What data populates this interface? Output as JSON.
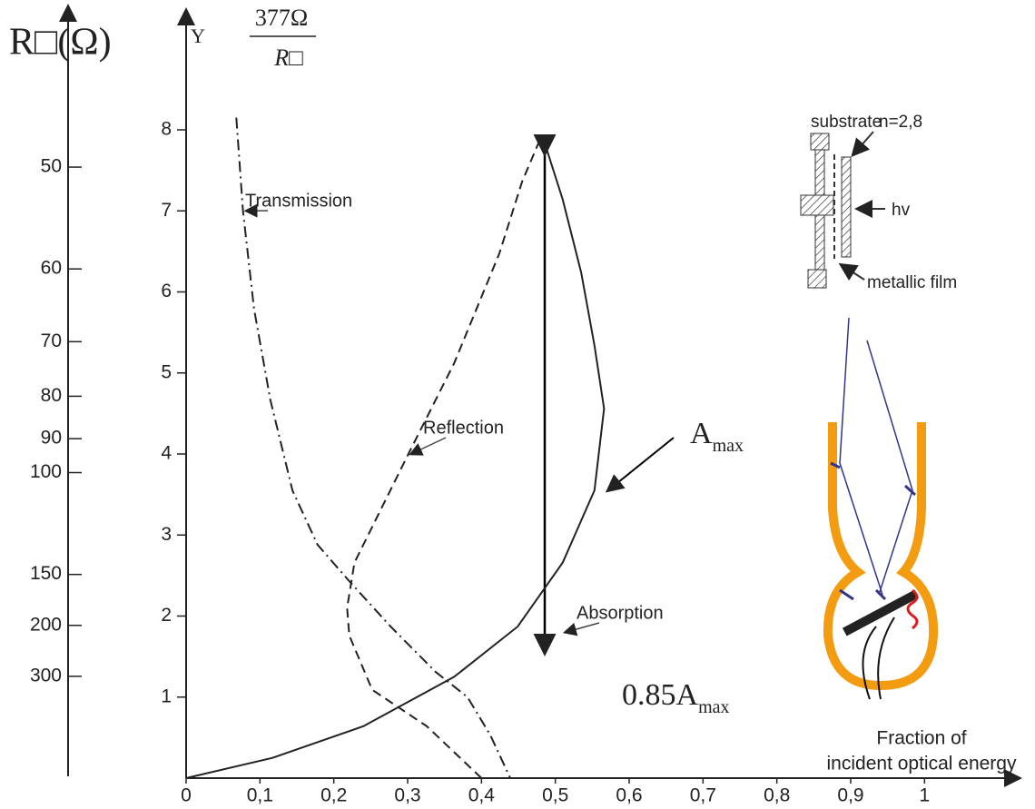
{
  "chart_data": {
    "type": "line",
    "y_label": "Y",
    "y_label_numerator": "377Ω",
    "y_label_denominator": "R□",
    "y2_label": "R□(Ω)",
    "x_label_lines": [
      "Fraction of",
      "incident optical energy"
    ],
    "xlim": [
      0,
      1.125
    ],
    "xticks": [
      0,
      {
        "value": 0.1,
        "label": "0,1"
      },
      {
        "value": 0.2,
        "label": "0,2"
      },
      {
        "value": 0.3,
        "label": "0,3"
      },
      {
        "value": 0.4,
        "label": "0,4"
      },
      {
        "value": 0.5,
        "label": "0,5"
      },
      {
        "value": 0.6,
        "label": "0,6"
      },
      {
        "value": 0.7,
        "label": "0,7"
      },
      {
        "value": 0.8,
        "label": "0,8"
      },
      {
        "value": 0.9,
        "label": "0,9"
      },
      1
    ],
    "ylim": [
      0,
      9.49
    ],
    "yticks": [
      1,
      2,
      3,
      4,
      5,
      6,
      7,
      8
    ],
    "y2scale": "reciprocal",
    "y2scale_numerator": 377,
    "y2ticks": [
      50,
      60,
      70,
      80,
      90,
      100,
      150,
      200,
      300
    ],
    "series": [
      {
        "name": "Transmission",
        "color": "#222222",
        "dash": "dashdot",
        "x": [
          0.068,
          0.077,
          0.092,
          0.114,
          0.144,
          0.178,
          0.221,
          0.277,
          0.338,
          0.381,
          0.412,
          0.439
        ],
        "values": [
          8.15,
          7.0,
          5.79,
          4.67,
          3.55,
          2.88,
          2.43,
          1.87,
          1.31,
          1.0,
          0.53,
          0
        ]
      },
      {
        "name": "Reflection",
        "color": "#222222",
        "dash": "dashed",
        "x": [
          0.4,
          0.326,
          0.252,
          0.221,
          0.218,
          0.228,
          0.252,
          0.301,
          0.363,
          0.424,
          0.455,
          0.482
        ],
        "values": [
          0,
          0.64,
          1.09,
          1.76,
          2.1,
          2.66,
          3.1,
          4.0,
          5.12,
          6.47,
          7.36,
          7.94
        ]
      },
      {
        "name": "Absorption",
        "color": "#222222",
        "dash": "solid",
        "x": [
          0,
          0.117,
          0.24,
          0.363,
          0.449,
          0.51,
          0.553,
          0.566,
          0.553,
          0.535,
          0.51,
          0.482
        ],
        "values": [
          0,
          0.25,
          0.64,
          1.25,
          1.87,
          2.66,
          3.55,
          4.56,
          5.34,
          6.24,
          7.14,
          7.94
        ]
      }
    ],
    "annotations": [
      {
        "text": "A",
        "sub": "max"
      },
      {
        "text": "0.85A",
        "sub": "max"
      }
    ],
    "inset": {
      "labels": [
        "substrate",
        "n=2,8",
        "hv",
        "metallic film"
      ]
    }
  }
}
